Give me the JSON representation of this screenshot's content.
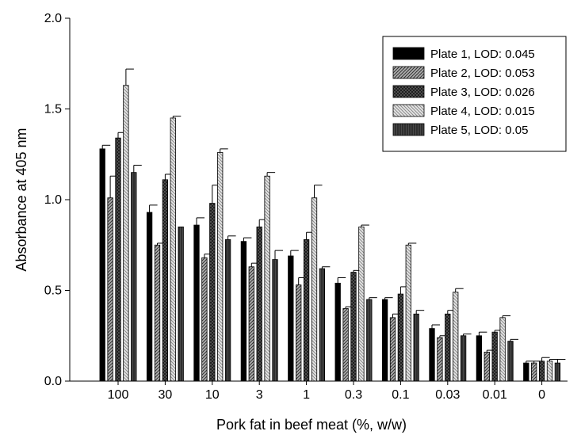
{
  "chart_data": {
    "type": "bar",
    "title": "",
    "xlabel": "Pork fat in beef meat (%, w/w)",
    "ylabel": "Absorbance at 405 nm",
    "ylim": [
      0,
      2.0
    ],
    "yticks": [
      "0.0",
      "0.5",
      "1.0",
      "1.5",
      "2.0"
    ],
    "categories": [
      "100",
      "30",
      "10",
      "3",
      "1",
      "0.3",
      "0.1",
      "0.03",
      "0.01",
      "0"
    ],
    "grid": false,
    "legend_position": "top-right",
    "series": [
      {
        "name": "Plate 1, LOD: 0.045",
        "pattern": "solid-black",
        "values": [
          1.28,
          0.93,
          0.86,
          0.77,
          0.69,
          0.54,
          0.45,
          0.29,
          0.25,
          0.1
        ],
        "errors": [
          0.02,
          0.04,
          0.04,
          0.02,
          0.03,
          0.03,
          0.01,
          0.02,
          0.02,
          0.01
        ]
      },
      {
        "name": "Plate 2, LOD: 0.053",
        "pattern": "diagonal-dark",
        "values": [
          1.01,
          0.75,
          0.68,
          0.63,
          0.53,
          0.4,
          0.35,
          0.24,
          0.16,
          0.1
        ],
        "errors": [
          0.12,
          0.01,
          0.02,
          0.02,
          0.04,
          0.01,
          0.02,
          0.01,
          0.01,
          0.01
        ]
      },
      {
        "name": "Plate 3, LOD: 0.026",
        "pattern": "crosshatch-dark",
        "values": [
          1.34,
          1.11,
          0.98,
          0.85,
          0.78,
          0.6,
          0.48,
          0.37,
          0.27,
          0.11
        ],
        "errors": [
          0.03,
          0.03,
          0.1,
          0.04,
          0.04,
          0.01,
          0.04,
          0.02,
          0.01,
          0.02
        ]
      },
      {
        "name": "Plate 4, LOD: 0.015",
        "pattern": "diagonal-light",
        "values": [
          1.63,
          1.45,
          1.26,
          1.13,
          1.01,
          0.85,
          0.75,
          0.49,
          0.35,
          0.11
        ],
        "errors": [
          0.09,
          0.01,
          0.02,
          0.02,
          0.07,
          0.01,
          0.01,
          0.02,
          0.01,
          0.01
        ]
      },
      {
        "name": "Plate 5, LOD: 0.05",
        "pattern": "vertical-dark",
        "values": [
          1.15,
          0.85,
          0.78,
          0.67,
          0.62,
          0.45,
          0.37,
          0.25,
          0.22,
          0.1
        ],
        "errors": [
          0.04,
          0.0,
          0.02,
          0.05,
          0.01,
          0.01,
          0.02,
          0.01,
          0.01,
          0.02
        ]
      }
    ]
  }
}
